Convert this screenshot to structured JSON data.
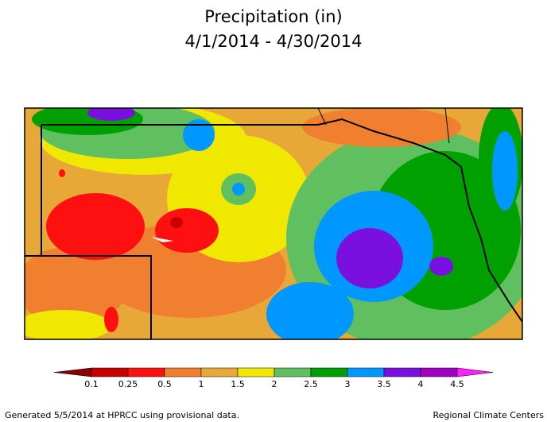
{
  "header": {
    "title": "Precipitation (in)",
    "subtitle": "4/1/2014 - 4/30/2014"
  },
  "legend": {
    "labels": [
      "0.1",
      "0.25",
      "0.5",
      "1",
      "1.5",
      "2",
      "2.5",
      "3",
      "3.5",
      "4",
      "4.5"
    ],
    "colors": [
      "#8b0000",
      "#c80000",
      "#ff1010",
      "#f08030",
      "#e8a838",
      "#f0e800",
      "#60c060",
      "#00a000",
      "#0098ff",
      "#7a10e0",
      "#a000c0",
      "#ff20ff"
    ]
  },
  "footer": {
    "left": "Generated 5/5/2014 at HPRCC using provisional data.",
    "right": "Regional Climate Centers"
  }
}
